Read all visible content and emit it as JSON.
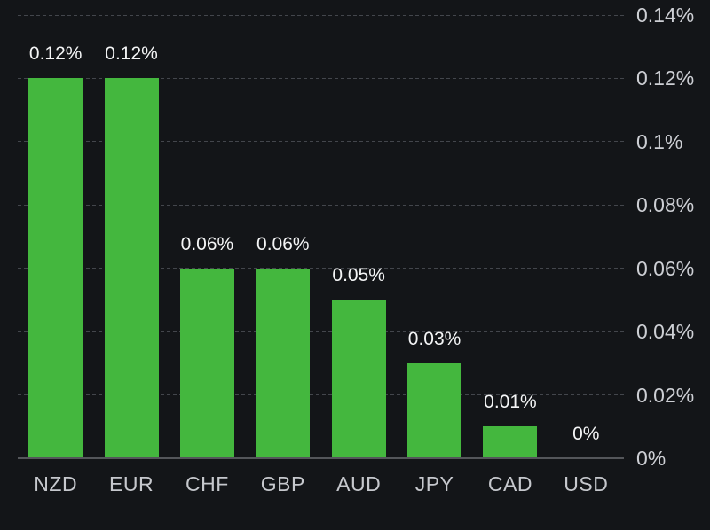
{
  "chart_data": {
    "type": "bar",
    "title": "",
    "xlabel": "",
    "ylabel": "",
    "categories": [
      "NZD",
      "EUR",
      "CHF",
      "GBP",
      "AUD",
      "JPY",
      "CAD",
      "USD"
    ],
    "values": [
      0.12,
      0.12,
      0.06,
      0.06,
      0.05,
      0.03,
      0.01,
      0
    ],
    "value_labels": [
      "0.12%",
      "0.12%",
      "0.06%",
      "0.06%",
      "0.05%",
      "0.03%",
      "0.01%",
      "0%"
    ],
    "y_ticks": [
      0,
      0.02,
      0.04,
      0.06,
      0.08,
      0.1,
      0.12,
      0.14
    ],
    "y_tick_labels": [
      "0%",
      "0.02%",
      "0.04%",
      "0.06%",
      "0.08%",
      "0.1%",
      "0.12%",
      "0.14%"
    ],
    "ylim": [
      0,
      0.14
    ],
    "grid": "dashed-horizontal",
    "legend": "none",
    "y_axis_position": "right",
    "colors": {
      "background": "#131518",
      "bar": "#44b73e",
      "value_label": "#f4f5f6",
      "axis_label": "#cdcfd4",
      "category_label": "#c6c8cd",
      "gridline": "#43464c",
      "baseline": "#54565a"
    }
  }
}
